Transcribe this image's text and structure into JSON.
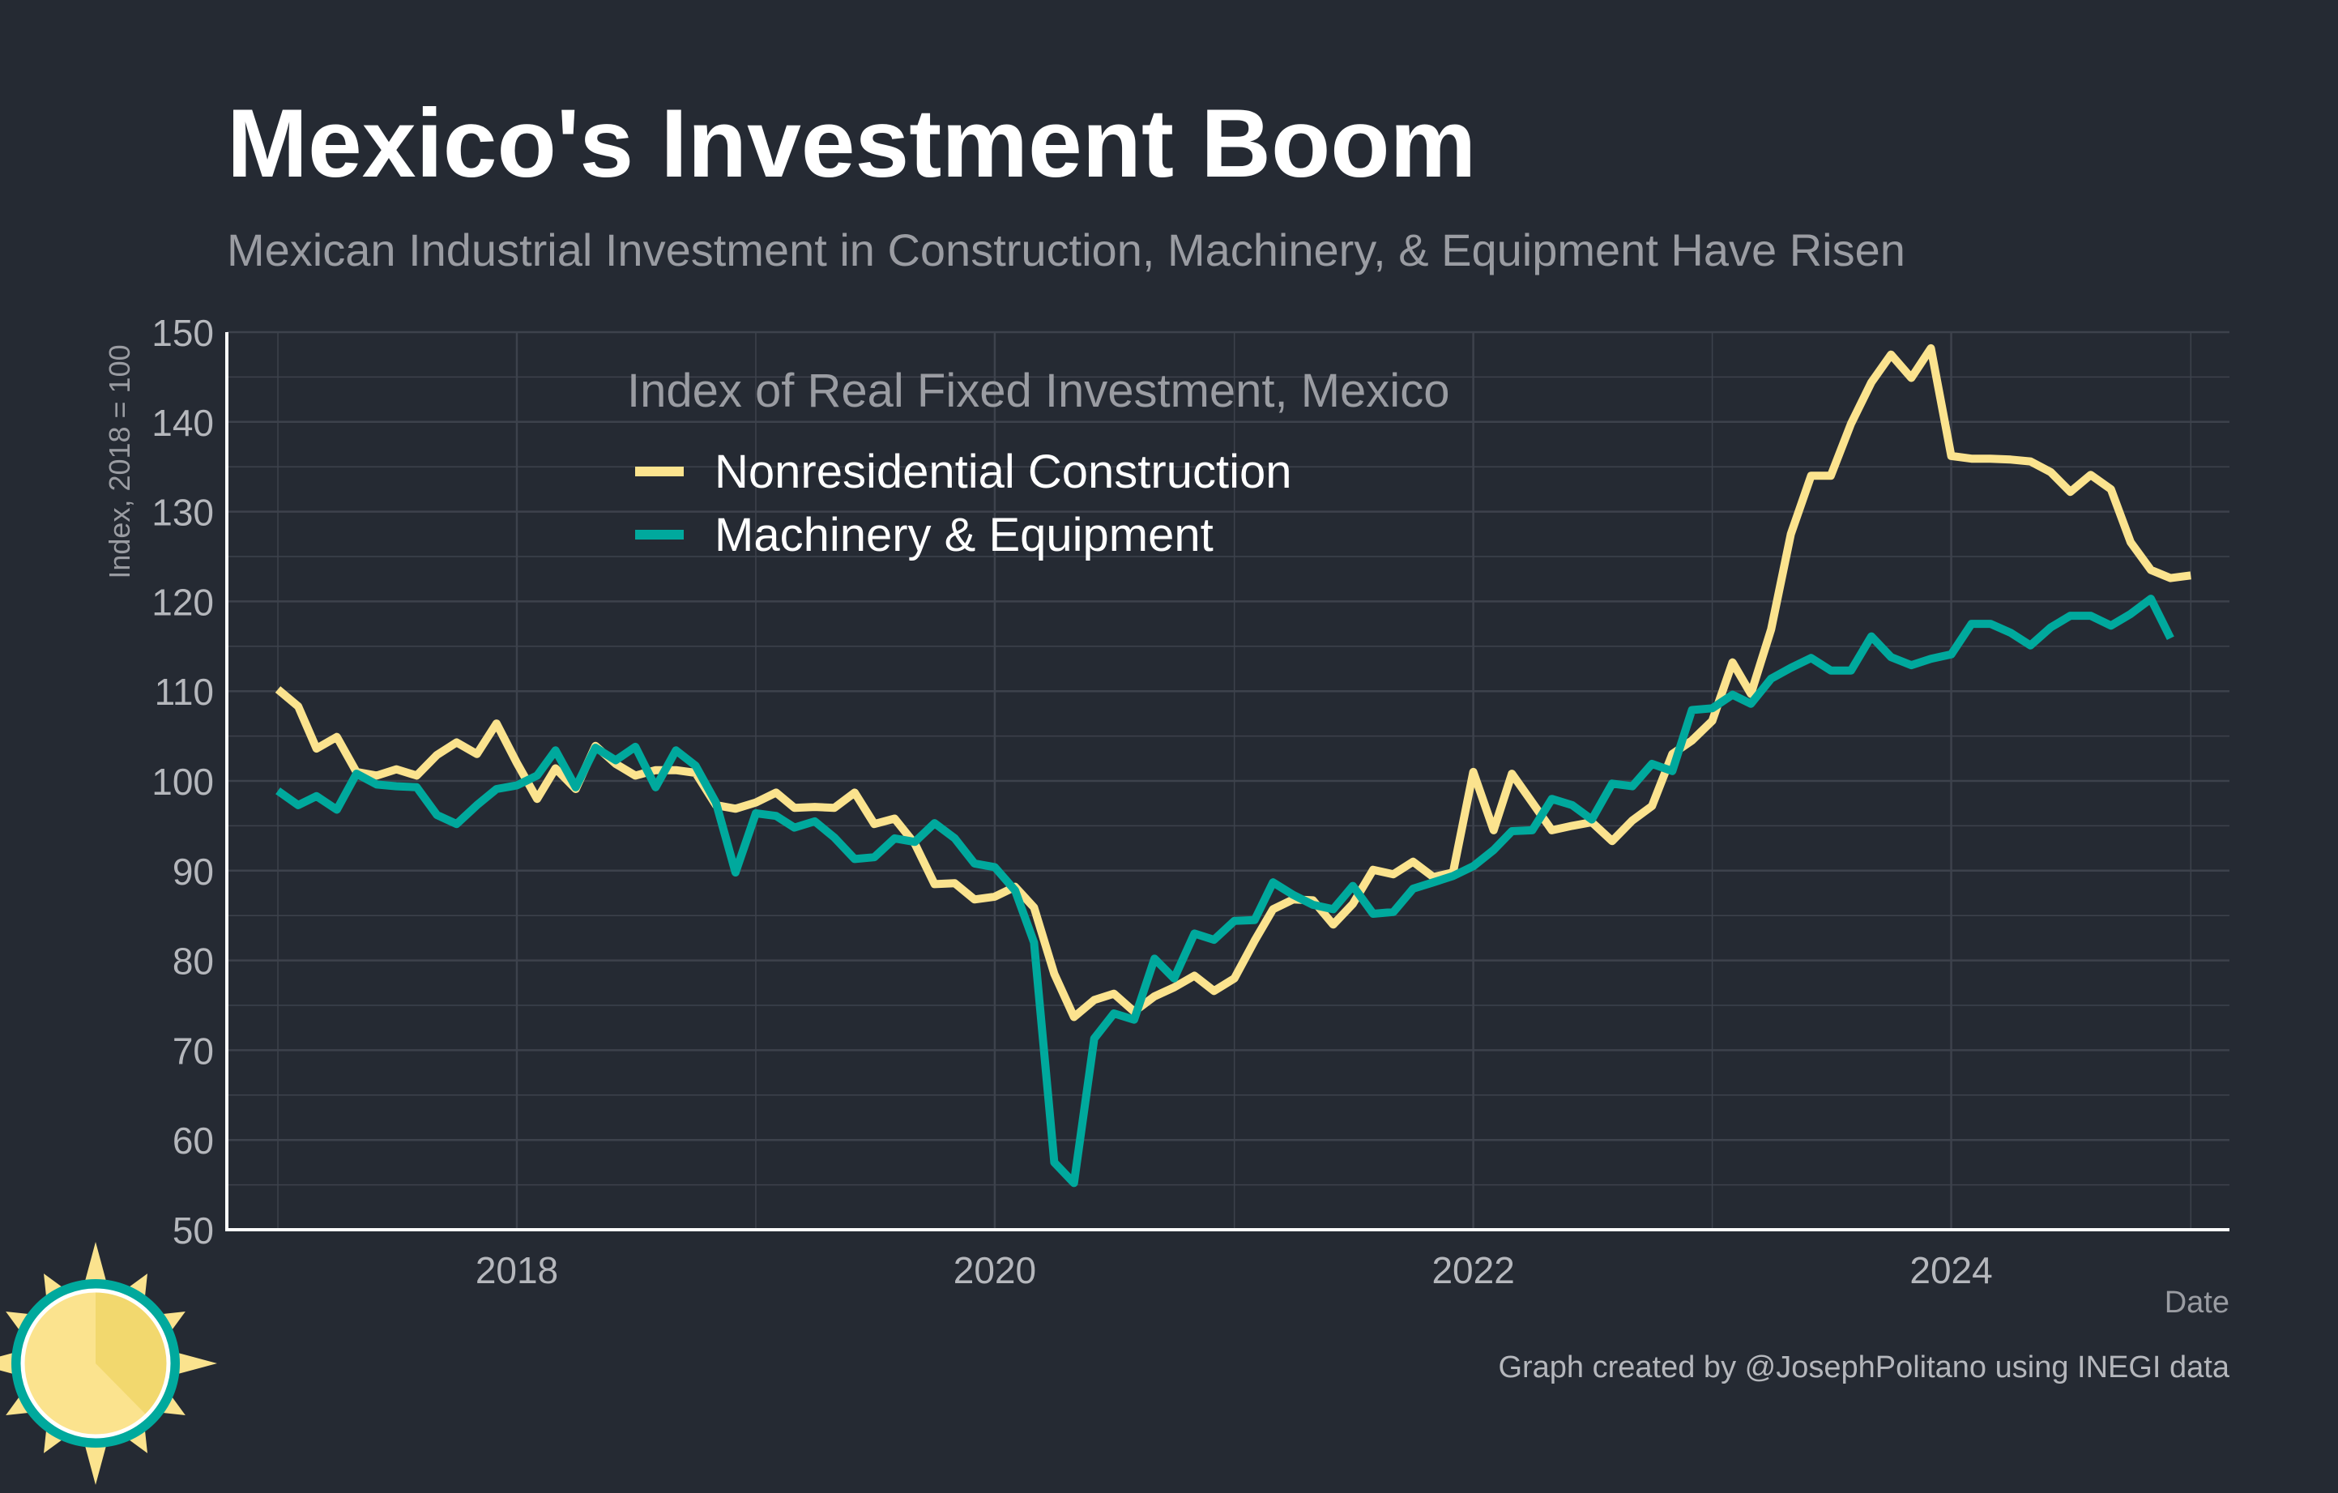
{
  "title": "Mexico's Investment Boom",
  "subtitle": "Mexican Industrial Investment in Construction, Machinery, & Equipment Have Risen",
  "caption": "Graph created by @JosephPolitano using INEGI data",
  "colors": {
    "background": "#252a33",
    "grid": "#3d424c",
    "axis": "#ffffff",
    "construction": "#fbe38e",
    "machinery": "#00a99d"
  },
  "logo": {
    "name": "sun-logo-icon"
  },
  "chart_data": {
    "type": "line",
    "legend_title": "Index of Real Fixed Investment, Mexico",
    "legend_position": "top-left-center",
    "xlabel": "Date",
    "ylabel": "Index, 2018 = 100",
    "xlim": [
      "2016-10-15",
      "2025-03-01"
    ],
    "ylim": [
      50,
      150
    ],
    "x_ticks": [
      {
        "date": "2018-01-01",
        "label": "2018"
      },
      {
        "date": "2020-01-01",
        "label": "2020"
      },
      {
        "date": "2022-01-01",
        "label": "2022"
      },
      {
        "date": "2024-01-01",
        "label": "2024"
      }
    ],
    "y_ticks": [
      50,
      60,
      70,
      80,
      90,
      100,
      110,
      120,
      130,
      140,
      150
    ],
    "grid": true,
    "start_month": "2017-01",
    "frequency": "monthly",
    "series": [
      {
        "name": "Nonresidential Construction",
        "color": "#fbe38e",
        "values": [
          110.2,
          108.3,
          103.6,
          104.9,
          101.0,
          100.6,
          101.3,
          100.6,
          102.9,
          104.3,
          103.0,
          106.4,
          102.0,
          98.0,
          101.4,
          99.1,
          103.9,
          101.9,
          100.6,
          101.2,
          101.2,
          100.9,
          97.3,
          96.9,
          97.6,
          98.7,
          97.0,
          97.1,
          97.0,
          98.7,
          95.2,
          95.8,
          93.0,
          88.5,
          88.6,
          86.8,
          87.1,
          88.2,
          85.9,
          78.5,
          73.7,
          75.6,
          76.3,
          74.3,
          76.0,
          77.0,
          78.3,
          76.6,
          78.0,
          82.2,
          85.7,
          86.8,
          86.7,
          84.0,
          86.3,
          90.1,
          89.6,
          91.0,
          89.3,
          89.8,
          101.0,
          94.5,
          100.8,
          97.6,
          94.5,
          95.0,
          95.4,
          93.3,
          95.6,
          97.2,
          103.0,
          104.5,
          106.7,
          113.2,
          109.7,
          116.9,
          127.5,
          134.0,
          134.0,
          139.8,
          144.4,
          147.5,
          144.9,
          148.2,
          136.2,
          135.9,
          135.9,
          135.8,
          135.6,
          134.4,
          132.2,
          134.1,
          132.5,
          126.6,
          123.5,
          122.6,
          122.9
        ]
      },
      {
        "name": "Machinery & Equipment",
        "color": "#00a99d",
        "values": [
          98.9,
          97.3,
          98.3,
          96.8,
          100.8,
          99.6,
          99.4,
          99.3,
          96.2,
          95.2,
          97.3,
          99.1,
          99.5,
          100.6,
          103.4,
          99.3,
          103.7,
          102.3,
          103.8,
          99.3,
          103.4,
          101.7,
          97.6,
          89.8,
          96.4,
          96.1,
          94.8,
          95.5,
          93.7,
          91.3,
          91.5,
          93.6,
          93.2,
          95.3,
          93.6,
          90.8,
          90.4,
          87.8,
          82.0,
          57.5,
          55.2,
          71.3,
          74.1,
          73.4,
          80.2,
          78.0,
          83.0,
          82.3,
          84.4,
          84.5,
          88.7,
          87.3,
          86.2,
          85.7,
          88.3,
          85.2,
          85.4,
          88.0,
          88.7,
          89.4,
          90.5,
          92.3,
          94.4,
          94.5,
          98.0,
          97.3,
          95.7,
          99.7,
          99.4,
          101.9,
          101.1,
          107.9,
          108.1,
          109.6,
          108.6,
          111.4,
          112.6,
          113.7,
          112.3,
          112.3,
          116.1,
          113.8,
          112.9,
          113.6,
          114.1,
          117.5,
          117.5,
          116.5,
          115.1,
          117.1,
          118.4,
          118.4,
          117.3,
          118.6,
          120.3,
          115.9
        ]
      }
    ]
  }
}
